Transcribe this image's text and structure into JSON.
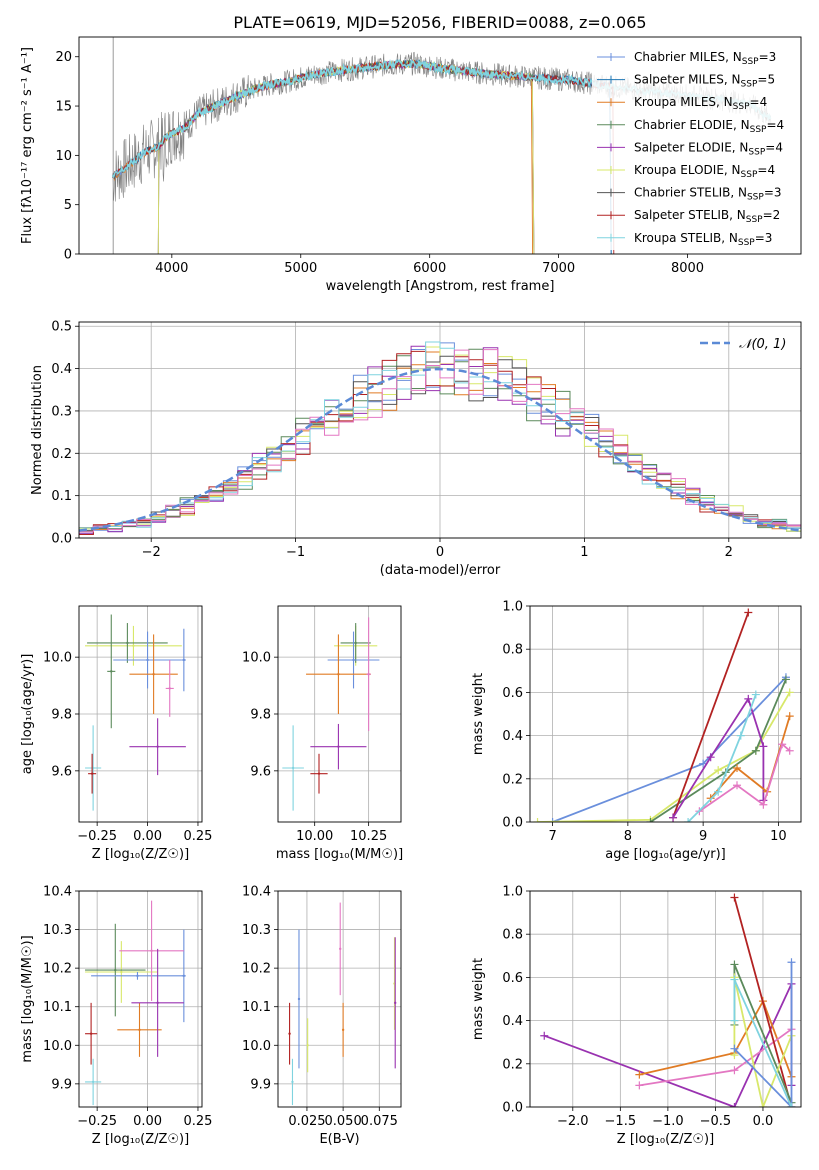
{
  "title": "PLATE=0619, MJD=52056, FIBERID=0088, z=0.065",
  "colors": {
    "chabrier_miles": "#6a8fdc",
    "salpeter_miles": "#1f77b4",
    "kroupa_miles": "#e07b24",
    "chabrier_elodie": "#5b8a5b",
    "salpeter_elodie": "#9932b0",
    "kroupa_elodie": "#d8e86a",
    "chabrier_stelib": "#555555",
    "salpeter_stelib": "#b22222",
    "kroupa_stelib": "#7fd3df",
    "pink": "#e377c2",
    "data_gray": "#808080",
    "gaussian": "#5b8ad6",
    "grid": "#b0b0b0"
  },
  "chart_data": [
    {
      "type": "line",
      "title": "PLATE=0619, MJD=52056, FIBERID=0088, z=0.065",
      "xlabel": "wavelength [Angstrom, rest frame]",
      "ylabel": "Flux [fλ10⁻¹⁷ erg cm⁻² s⁻¹ A⁻¹]",
      "xlim": [
        3280,
        8880
      ],
      "ylim": [
        0,
        22
      ],
      "xticks": [
        "4000",
        "5000",
        "6000",
        "7000",
        "8000"
      ],
      "yticks": [
        "0",
        "5",
        "10",
        "15",
        "20"
      ],
      "grid": false,
      "legend": "right",
      "spectrum_anchor_x": [
        3540,
        3650,
        3800,
        3900,
        3950,
        4000,
        4100,
        4200,
        4300,
        4500,
        4700,
        4900,
        5100,
        5300,
        5500,
        5700,
        5900,
        6100,
        6300,
        6500,
        6700,
        6900,
        7100,
        7300,
        7500,
        7700,
        7900,
        8100,
        8300,
        8500,
        8650
      ],
      "spectrum_anchor_y": [
        7.8,
        8.8,
        10.4,
        10.9,
        11.8,
        12.2,
        12.8,
        14.2,
        14.8,
        16.0,
        17.0,
        17.5,
        18.2,
        18.6,
        18.9,
        19.2,
        19.3,
        18.8,
        18.5,
        18.2,
        18.0,
        17.8,
        17.6,
        17.2,
        16.8,
        16.5,
        16.2,
        15.9,
        15.6,
        15.1,
        13.6
      ],
      "series": [
        {
          "name": "Chabrier MILES, N_SSP=3",
          "label_main": "Chabrier MILES, N",
          "label_sub": "SSP",
          "label_val": "=3"
        },
        {
          "name": "Salpeter MILES, N_SSP=5",
          "label_main": "Salpeter MILES, N",
          "label_sub": "SSP",
          "label_val": "=5"
        },
        {
          "name": "Kroupa MILES, N_SSP=4",
          "label_main": "Kroupa MILES, N",
          "label_sub": "SSP",
          "label_val": "=4"
        },
        {
          "name": "Chabrier ELODIE, N_SSP=4",
          "label_main": "Chabrier ELODIE, N",
          "label_sub": "SSP",
          "label_val": "=4"
        },
        {
          "name": "Salpeter ELODIE, N_SSP=4",
          "label_main": "Salpeter ELODIE, N",
          "label_sub": "SSP",
          "label_val": "=4"
        },
        {
          "name": "Kroupa ELODIE, N_SSP=4",
          "label_main": "Kroupa ELODIE, N",
          "label_sub": "SSP",
          "label_val": "=4"
        },
        {
          "name": "Chabrier STELIB, N_SSP=3",
          "label_main": "Chabrier STELIB, N",
          "label_sub": "SSP",
          "label_val": "=3"
        },
        {
          "name": "Salpeter STELIB, N_SSP=2",
          "label_main": "Salpeter STELIB, N",
          "label_sub": "SSP",
          "label_val": "=2"
        },
        {
          "name": "Kroupa STELIB, N_SSP=3",
          "label_main": "Kroupa STELIB, N",
          "label_sub": "SSP",
          "label_val": "=3"
        }
      ]
    },
    {
      "type": "bar",
      "xlabel": "(data-model)/error",
      "ylabel": "Normed distribution",
      "xlim": [
        -2.5,
        2.5
      ],
      "ylim": [
        0,
        0.51
      ],
      "xticks": [
        "−2",
        "−1",
        "0",
        "1",
        "2"
      ],
      "yticks": [
        "0.0",
        "0.1",
        "0.2",
        "0.3",
        "0.4",
        "0.5"
      ],
      "grid": true,
      "legend": "top-right",
      "legend_label": "𝒩(0, 1)",
      "bin_width": 0.1,
      "histogram_note": "nine overlaid step histograms approximately following the standard normal curve",
      "gaussian": {
        "mean": 0,
        "sigma": 1
      }
    },
    {
      "type": "scatter",
      "xlabel": "Z [log₁₀(Z/Z☉)]",
      "ylabel": "age  [log₁₀(age/yr)]",
      "xlim": [
        -0.34,
        0.27
      ],
      "ylim": [
        9.42,
        10.18
      ],
      "xticks": [
        "−0.25",
        "0.00",
        "0.25"
      ],
      "yticks": [
        "9.6",
        "9.8",
        "10.0"
      ],
      "points": [
        {
          "x": -0.27,
          "y": 9.61,
          "xerr": 0.04,
          "yerr": 0.15,
          "c": "kroupa_stelib"
        },
        {
          "x": -0.275,
          "y": 9.59,
          "xerr": 0.02,
          "yerr": 0.07,
          "c": "salpeter_stelib"
        },
        {
          "x": -0.07,
          "y": 10.04,
          "xerr": 0.24,
          "yerr": 0.07,
          "c": "kroupa_elodie"
        },
        {
          "x": -0.1,
          "y": 10.05,
          "xerr": 0.2,
          "yerr": 0.07,
          "c": "chabrier_elodie"
        },
        {
          "x": -0.18,
          "y": 9.95,
          "xerr": 0.02,
          "yerr": 0.2,
          "c": "chabrier_elodie"
        },
        {
          "x": 0.0,
          "y": 9.99,
          "xerr": 0.17,
          "yerr": 0.1,
          "c": "chabrier_miles"
        },
        {
          "x": 0.18,
          "y": 9.99,
          "xerr": 0.01,
          "yerr": 0.11,
          "c": "chabrier_miles"
        },
        {
          "x": 0.03,
          "y": 9.94,
          "xerr": 0.12,
          "yerr": 0.14,
          "c": "kroupa_miles"
        },
        {
          "x": 0.11,
          "y": 9.89,
          "xerr": 0.02,
          "yerr": 0.1,
          "c": "pink"
        },
        {
          "x": 0.05,
          "y": 9.685,
          "xerr": 0.14,
          "yerr": 0.1,
          "c": "salpeter_elodie"
        }
      ]
    },
    {
      "type": "scatter",
      "xlabel": "mass [log₁₀(M/M☉)]",
      "ylabel": "",
      "xlim": [
        9.83,
        10.4
      ],
      "ylim": [
        9.42,
        10.18
      ],
      "xticks": [
        "10.00",
        "10.25"
      ],
      "yticks": [
        "9.6",
        "9.8",
        "10.0"
      ],
      "points": [
        {
          "x": 9.9,
          "y": 9.61,
          "xerr": 0.05,
          "yerr": 0.15,
          "c": "kroupa_stelib"
        },
        {
          "x": 10.02,
          "y": 9.59,
          "xerr": 0.04,
          "yerr": 0.07,
          "c": "salpeter_stelib"
        },
        {
          "x": 10.19,
          "y": 10.04,
          "xerr": 0.1,
          "yerr": 0.07,
          "c": "kroupa_elodie"
        },
        {
          "x": 10.19,
          "y": 10.05,
          "xerr": 0.07,
          "yerr": 0.07,
          "c": "chabrier_elodie"
        },
        {
          "x": 10.18,
          "y": 9.99,
          "xerr": 0.12,
          "yerr": 0.1,
          "c": "chabrier_miles"
        },
        {
          "x": 10.11,
          "y": 9.94,
          "xerr": 0.15,
          "yerr": 0.14,
          "c": "kroupa_miles"
        },
        {
          "x": 10.25,
          "y": 9.94,
          "xerr": 0.01,
          "yerr": 0.2,
          "c": "pink"
        },
        {
          "x": 10.11,
          "y": 9.685,
          "xerr": 0.13,
          "yerr": 0.08,
          "c": "salpeter_elodie"
        }
      ]
    },
    {
      "type": "line",
      "xlabel": "age  [log₁₀(age/yr)]",
      "ylabel": "mass weight",
      "xlim": [
        6.7,
        10.3
      ],
      "ylim": [
        0,
        1.0
      ],
      "xticks": [
        "7",
        "8",
        "9",
        "10"
      ],
      "yticks": [
        "0.0",
        "0.2",
        "0.4",
        "0.6",
        "0.8",
        "1.0"
      ],
      "grid": true,
      "series": [
        {
          "c": "chabrier_miles",
          "x": [
            7.0,
            9.0,
            10.1
          ],
          "y": [
            0.0,
            0.27,
            0.67
          ]
        },
        {
          "c": "kroupa_elodie",
          "x": [
            6.8,
            8.3,
            9.2,
            9.7,
            10.15
          ],
          "y": [
            0.0,
            0.01,
            0.24,
            0.33,
            0.6
          ]
        },
        {
          "c": "chabrier_elodie",
          "x": [
            8.3,
            9.3,
            9.7,
            10.1
          ],
          "y": [
            0.0,
            0.23,
            0.33,
            0.66
          ]
        },
        {
          "c": "salpeter_stelib",
          "x": [
            8.6,
            9.6
          ],
          "y": [
            0.02,
            0.97
          ]
        },
        {
          "c": "salpeter_elodie",
          "x": [
            8.6,
            9.1,
            9.6,
            9.8,
            9.8
          ],
          "y": [
            0.02,
            0.3,
            0.57,
            0.35,
            0.1
          ]
        },
        {
          "c": "kroupa_miles",
          "x": [
            9.1,
            9.45,
            9.85,
            10.15
          ],
          "y": [
            0.11,
            0.25,
            0.14,
            0.49
          ]
        },
        {
          "c": "pink",
          "x": [
            8.95,
            9.45,
            9.8,
            10.05,
            10.15
          ],
          "y": [
            0.05,
            0.17,
            0.08,
            0.36,
            0.33
          ]
        },
        {
          "c": "kroupa_stelib",
          "x": [
            8.8,
            9.2,
            9.5,
            9.7
          ],
          "y": [
            0.0,
            0.14,
            0.4,
            0.59
          ]
        }
      ]
    },
    {
      "type": "scatter",
      "xlabel": "Z [log₁₀(Z/Z☉)]",
      "ylabel": "mass [log₁₀(M/M☉)]",
      "xlim": [
        -0.34,
        0.27
      ],
      "ylim": [
        9.84,
        10.4
      ],
      "xticks": [
        "−0.25",
        "0.00",
        "0.25"
      ],
      "yticks": [
        "9.9",
        "10.0",
        "10.1",
        "10.2",
        "10.3",
        "10.4"
      ],
      "points": [
        {
          "x": -0.27,
          "y": 9.905,
          "xerr": 0.04,
          "yerr": 0.06,
          "c": "kroupa_stelib"
        },
        {
          "x": -0.28,
          "y": 10.03,
          "xerr": 0.03,
          "yerr": 0.08,
          "c": "salpeter_stelib"
        },
        {
          "x": -0.13,
          "y": 10.19,
          "xerr": 0.18,
          "yerr": 0.08,
          "c": "kroupa_elodie"
        },
        {
          "x": -0.16,
          "y": 10.195,
          "xerr": 0.15,
          "yerr": 0.12,
          "c": "chabrier_elodie"
        },
        {
          "x": -0.05,
          "y": 10.18,
          "xerr": 0.23,
          "yerr": 0.01,
          "c": "chabrier_miles"
        },
        {
          "x": 0.18,
          "y": 10.18,
          "xerr": 0.01,
          "yerr": 0.12,
          "c": "chabrier_miles"
        },
        {
          "x": -0.04,
          "y": 10.04,
          "xerr": 0.11,
          "yerr": 0.07,
          "c": "kroupa_miles"
        },
        {
          "x": 0.02,
          "y": 10.245,
          "xerr": 0.16,
          "yerr": 0.13,
          "c": "pink"
        },
        {
          "x": 0.05,
          "y": 10.11,
          "xerr": 0.13,
          "yerr": 0.14,
          "c": "salpeter_elodie"
        }
      ]
    },
    {
      "type": "scatter",
      "xlabel": "E(B-V)",
      "ylabel": "",
      "xlim": [
        0.005,
        0.09
      ],
      "ylim": [
        9.84,
        10.4
      ],
      "xticks": [
        "0.025",
        "0.050",
        "0.075"
      ],
      "yticks": [
        "9.9",
        "10.0",
        "10.1",
        "10.2",
        "10.3",
        "10.4"
      ],
      "points": [
        {
          "x": 0.013,
          "y": 10.03,
          "xerr": 0,
          "yerr": 0.08,
          "c": "salpeter_stelib"
        },
        {
          "x": 0.015,
          "y": 9.905,
          "xerr": 0,
          "yerr": 0.06,
          "c": "kroupa_stelib"
        },
        {
          "x": 0.0195,
          "y": 10.12,
          "xerr": 0,
          "yerr": 0.18,
          "c": "chabrier_miles"
        },
        {
          "x": 0.0255,
          "y": 10.0,
          "xerr": 0,
          "yerr": 0.07,
          "c": "kroupa_elodie"
        },
        {
          "x": 0.048,
          "y": 10.25,
          "xerr": 0,
          "yerr": 0.12,
          "c": "pink"
        },
        {
          "x": 0.05,
          "y": 10.04,
          "xerr": 0,
          "yerr": 0.07,
          "c": "kroupa_miles"
        },
        {
          "x": 0.0855,
          "y": 10.16,
          "xerr": 0,
          "yerr": 0.12,
          "c": "kroupa_elodie"
        },
        {
          "x": 0.086,
          "y": 10.11,
          "xerr": 0,
          "yerr": 0.17,
          "c": "salpeter_elodie"
        }
      ]
    },
    {
      "type": "line",
      "xlabel": "Z [log₁₀(Z/Z☉)]",
      "ylabel": "mass weight",
      "xlim": [
        -2.45,
        0.4
      ],
      "ylim": [
        0,
        1.0
      ],
      "xticks": [
        "−2.0",
        "−1.5",
        "−1.0",
        "−0.5",
        "0.0"
      ],
      "yticks": [
        "0.0",
        "0.2",
        "0.4",
        "0.6",
        "0.8",
        "1.0"
      ],
      "grid": true,
      "series": [
        {
          "c": "salpeter_elodie",
          "x": [
            -2.3,
            -0.3,
            0.3,
            0.3
          ],
          "y": [
            0.33,
            0.0,
            0.57,
            0.1
          ]
        },
        {
          "c": "kroupa_miles",
          "x": [
            -1.3,
            -0.3,
            0.0,
            0.3
          ],
          "y": [
            0.15,
            0.25,
            0.49,
            0.14
          ]
        },
        {
          "c": "pink",
          "x": [
            -1.3,
            -0.3,
            0.3
          ],
          "y": [
            0.1,
            0.17,
            0.36
          ]
        },
        {
          "c": "salpeter_stelib",
          "x": [
            -0.3,
            0.3
          ],
          "y": [
            0.97,
            0.0
          ]
        },
        {
          "c": "chabrier_elodie",
          "x": [
            -0.3,
            -0.3,
            0.3
          ],
          "y": [
            0.38,
            0.66,
            0.02
          ]
        },
        {
          "c": "kroupa_elodie",
          "x": [
            -0.3,
            -0.3,
            0.0,
            0.3
          ],
          "y": [
            0.24,
            0.6,
            0.0,
            0.33
          ]
        },
        {
          "c": "chabrier_miles",
          "x": [
            -0.3,
            0.3,
            0.3
          ],
          "y": [
            0.27,
            0.0,
            0.67
          ]
        },
        {
          "c": "kroupa_stelib",
          "x": [
            -0.3,
            -0.3,
            0.3
          ],
          "y": [
            0.4,
            0.59,
            0.0
          ]
        }
      ]
    }
  ]
}
